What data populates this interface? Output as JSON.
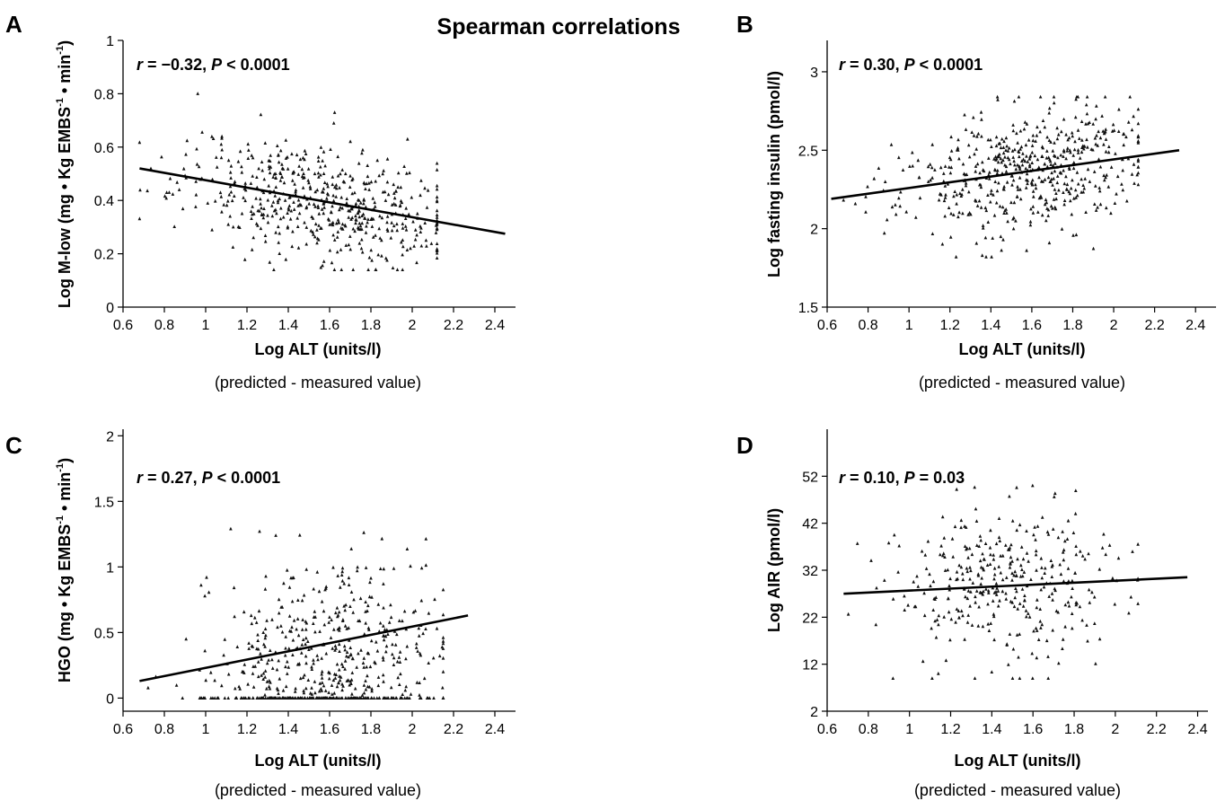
{
  "figure_title": "Spearman correlations",
  "chart_data": [
    {
      "type": "scatter",
      "panel": "A",
      "annotation": {
        "r_label": "r",
        "r_text": " = −0.32, ",
        "p_label": "P",
        "p_text": " < 0.0001"
      },
      "xlabel": "Log ALT (units/l)",
      "xsublabel": "(predicted - measured value)",
      "ylabel": {
        "pre": "Log M-low (mg • Kg EMBS",
        "sup1": "-1",
        "mid": " • min",
        "sup2": "-1",
        "post": ")"
      },
      "xlim": [
        0.6,
        2.5
      ],
      "ylim": [
        0,
        1
      ],
      "xticks": [
        "0.6",
        "0.8",
        "1",
        "1.2",
        "1.4",
        "1.6",
        "1.8",
        "2",
        "2.2",
        "2.4"
      ],
      "yticks": [
        "0",
        "0.2",
        "0.4",
        "0.6",
        "0.8",
        "1"
      ],
      "trend": {
        "x": [
          0.68,
          2.45
        ],
        "y": [
          0.52,
          0.275
        ]
      },
      "scatter_summary": {
        "x_center": 1.55,
        "x_spread": 0.33,
        "x_min": 0.68,
        "x_max": 2.12,
        "y_min": 0.14,
        "y_max": 0.82,
        "residual_spread": 0.11,
        "n": 560,
        "seed": 11
      }
    },
    {
      "type": "scatter",
      "panel": "B",
      "annotation": {
        "r_label": "r",
        "r_text": " = 0.30, ",
        "p_label": "P",
        "p_text": " < 0.0001"
      },
      "xlabel": "Log ALT (units/l)",
      "xsublabel": "(predicted - measured value)",
      "ylabel": {
        "pre": "Log fasting insulin (pmol/l)"
      },
      "xlim": [
        0.6,
        2.5
      ],
      "ylim": [
        1.5,
        3.2
      ],
      "xticks": [
        "0.6",
        "0.8",
        "1",
        "1.2",
        "1.4",
        "1.6",
        "1.8",
        "2",
        "2.2",
        "2.4"
      ],
      "yticks": [
        "1.5",
        "2",
        "2.5",
        "3"
      ],
      "trend": {
        "x": [
          0.62,
          2.32
        ],
        "y": [
          2.19,
          2.5
        ]
      },
      "scatter_summary": {
        "x_center": 1.55,
        "x_spread": 0.3,
        "x_min": 0.68,
        "x_max": 2.12,
        "y_min": 1.82,
        "y_max": 2.84,
        "residual_spread": 0.2,
        "n": 540,
        "seed": 23
      }
    },
    {
      "type": "scatter",
      "panel": "C",
      "annotation": {
        "r_label": "r",
        "r_text": " = 0.27, ",
        "p_label": "P",
        "p_text": " < 0.0001"
      },
      "xlabel": "Log ALT (units/l)",
      "xsublabel": "(predicted - measured value)",
      "ylabel": {
        "pre": "HGO (mg • Kg EMBS",
        "sup1": "-1",
        "mid": " • min",
        "sup2": "-1",
        "post": ")"
      },
      "xlim": [
        0.6,
        2.5
      ],
      "ylim": [
        -0.1,
        2.05
      ],
      "xticks": [
        "0.6",
        "0.8",
        "1",
        "1.2",
        "1.4",
        "1.6",
        "1.8",
        "2",
        "2.2",
        "2.4"
      ],
      "yticks": [
        "0",
        "0.5",
        "1",
        "1.5",
        "2"
      ],
      "trend": {
        "x": [
          0.68,
          2.27
        ],
        "y": [
          0.13,
          0.63
        ]
      },
      "scatter_summary": {
        "x_center": 1.6,
        "x_spread": 0.3,
        "x_min": 0.68,
        "x_max": 2.15,
        "y_min": 0,
        "y_max": 1.94,
        "residual_spread": 0.38,
        "zero_fraction": 0.3,
        "n": 620,
        "seed": 37
      }
    },
    {
      "type": "scatter",
      "panel": "D",
      "annotation": {
        "r_label": "r",
        "r_text": " = 0.10, ",
        "p_label": "P",
        "p_text": " = 0.03"
      },
      "xlabel": "Log ALT (units/l)",
      "xsublabel": "(predicted - measured value)",
      "ylabel": {
        "pre": "Log AIR (pmol/l)"
      },
      "xlim": [
        0.6,
        2.45
      ],
      "ylim": [
        2,
        62
      ],
      "xticks": [
        "0.6",
        "0.8",
        "1",
        "1.2",
        "1.4",
        "1.6",
        "1.8",
        "2",
        "2.2",
        "2.4"
      ],
      "yticks": [
        "2",
        "12",
        "22",
        "32",
        "42",
        "52"
      ],
      "trend": {
        "x": [
          0.68,
          2.35
        ],
        "y": [
          27,
          30.5
        ]
      },
      "scatter_summary": {
        "x_center": 1.5,
        "x_spread": 0.3,
        "x_min": 0.68,
        "x_max": 2.11,
        "y_min": 9,
        "y_max": 50,
        "residual_spread": 8.5,
        "n": 360,
        "seed": 53
      }
    }
  ]
}
